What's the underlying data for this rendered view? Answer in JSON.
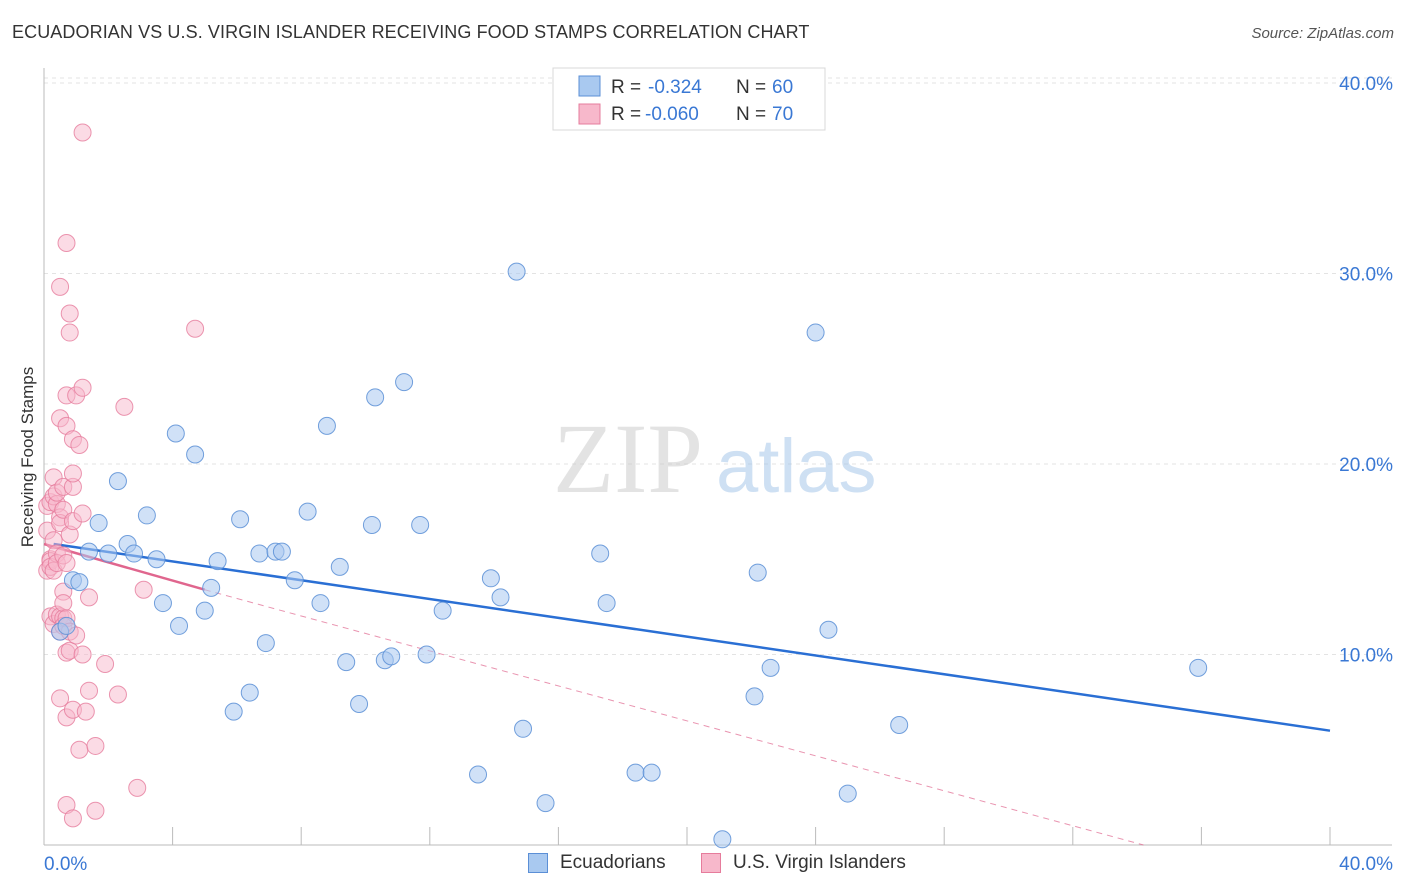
{
  "title": "ECUADORIAN VS U.S. VIRGIN ISLANDER RECEIVING FOOD STAMPS CORRELATION CHART",
  "source": "Source: ZipAtlas.com",
  "watermark": {
    "zip": "ZIP",
    "atlas": "atlas"
  },
  "colors": {
    "blue_fill": "#a9c9f0",
    "blue_stroke": "#5b8fd6",
    "blue_line": "#2a6fd4",
    "pink_fill": "#f7b8cb",
    "pink_stroke": "#e67c9c",
    "pink_line": "#e0668e",
    "axis_text": "#3a78d4",
    "grid": "#e3e3e3"
  },
  "legend_top": [
    {
      "r_label": "R =",
      "r_value": "-0.324",
      "n_label": "N =",
      "n_value": "60"
    },
    {
      "r_label": "R =",
      "r_value": "-0.060",
      "n_label": "N =",
      "n_value": "70"
    }
  ],
  "legend_bottom": [
    {
      "label": "Ecuadorians"
    },
    {
      "label": "U.S. Virgin Islanders"
    }
  ],
  "chart_data": {
    "type": "scatter",
    "title": "ECUADORIAN VS U.S. VIRGIN ISLANDER RECEIVING FOOD STAMPS CORRELATION CHART",
    "xlabel": "",
    "ylabel": "Receiving Food Stamps",
    "xlim": [
      0,
      40
    ],
    "ylim": [
      0,
      40.0
    ],
    "x_tick_labels": [
      "0.0%",
      "40.0%"
    ],
    "y_tick_labels": [
      "10.0%",
      "20.0%",
      "30.0%",
      "40.0%"
    ],
    "y_ticks": [
      10,
      20,
      30,
      40
    ],
    "legend_position": "top-center",
    "series": [
      {
        "name": "Ecuadorians",
        "r": -0.324,
        "n": 60,
        "trend": {
          "x": [
            0.3,
            40.0
          ],
          "y": [
            15.8,
            6.0
          ]
        },
        "points": [
          [
            0.5,
            11.2
          ],
          [
            0.7,
            11.5
          ],
          [
            0.9,
            13.9
          ],
          [
            1.1,
            13.8
          ],
          [
            1.4,
            15.4
          ],
          [
            1.7,
            16.9
          ],
          [
            2.0,
            15.3
          ],
          [
            2.3,
            19.1
          ],
          [
            2.6,
            15.8
          ],
          [
            2.8,
            15.3
          ],
          [
            3.2,
            17.3
          ],
          [
            3.5,
            15.0
          ],
          [
            3.7,
            12.7
          ],
          [
            4.1,
            21.6
          ],
          [
            4.2,
            11.5
          ],
          [
            4.7,
            20.5
          ],
          [
            5.0,
            12.3
          ],
          [
            5.2,
            13.5
          ],
          [
            5.4,
            14.9
          ],
          [
            5.9,
            7.0
          ],
          [
            6.1,
            17.1
          ],
          [
            6.4,
            8.0
          ],
          [
            6.7,
            15.3
          ],
          [
            6.9,
            10.6
          ],
          [
            7.2,
            15.4
          ],
          [
            7.4,
            15.4
          ],
          [
            7.8,
            13.9
          ],
          [
            8.2,
            17.5
          ],
          [
            8.6,
            12.7
          ],
          [
            8.8,
            22.0
          ],
          [
            9.2,
            14.6
          ],
          [
            9.4,
            9.6
          ],
          [
            9.8,
            7.4
          ],
          [
            10.2,
            16.8
          ],
          [
            10.3,
            23.5
          ],
          [
            10.6,
            9.7
          ],
          [
            10.8,
            9.9
          ],
          [
            11.2,
            24.3
          ],
          [
            11.7,
            16.8
          ],
          [
            11.9,
            10.0
          ],
          [
            12.4,
            12.3
          ],
          [
            13.5,
            3.7
          ],
          [
            13.9,
            14.0
          ],
          [
            14.2,
            13.0
          ],
          [
            14.7,
            30.1
          ],
          [
            14.9,
            6.1
          ],
          [
            15.6,
            2.2
          ],
          [
            17.3,
            15.3
          ],
          [
            17.5,
            12.7
          ],
          [
            18.4,
            3.8
          ],
          [
            18.9,
            3.8
          ],
          [
            21.1,
            0.3
          ],
          [
            22.1,
            7.8
          ],
          [
            22.2,
            14.3
          ],
          [
            22.6,
            9.3
          ],
          [
            24.0,
            26.9
          ],
          [
            24.4,
            11.3
          ],
          [
            25.0,
            2.7
          ],
          [
            26.6,
            6.3
          ],
          [
            35.9,
            9.3
          ]
        ]
      },
      {
        "name": "U.S. Virgin Islanders",
        "r": -0.06,
        "n": 70,
        "trend": {
          "x": [
            0.0,
            5.0
          ],
          "y": [
            15.8,
            13.4
          ]
        },
        "trend_dashed": {
          "x": [
            5.0,
            34.2
          ],
          "y": [
            13.4,
            0.0
          ]
        },
        "points": [
          [
            0.1,
            14.4
          ],
          [
            0.1,
            16.5
          ],
          [
            0.1,
            17.8
          ],
          [
            0.2,
            15.0
          ],
          [
            0.2,
            18.0
          ],
          [
            0.2,
            14.9
          ],
          [
            0.2,
            12.0
          ],
          [
            0.2,
            14.6
          ],
          [
            0.3,
            18.3
          ],
          [
            0.3,
            16.0
          ],
          [
            0.3,
            14.4
          ],
          [
            0.3,
            11.6
          ],
          [
            0.3,
            19.3
          ],
          [
            0.4,
            17.9
          ],
          [
            0.4,
            12.1
          ],
          [
            0.4,
            18.5
          ],
          [
            0.4,
            15.3
          ],
          [
            0.4,
            14.8
          ],
          [
            0.5,
            17.2
          ],
          [
            0.5,
            16.9
          ],
          [
            0.5,
            12.0
          ],
          [
            0.5,
            11.2
          ],
          [
            0.5,
            22.4
          ],
          [
            0.5,
            29.3
          ],
          [
            0.5,
            7.7
          ],
          [
            0.6,
            17.6
          ],
          [
            0.6,
            13.3
          ],
          [
            0.6,
            11.9
          ],
          [
            0.6,
            18.8
          ],
          [
            0.6,
            15.2
          ],
          [
            0.6,
            12.7
          ],
          [
            0.6,
            11.5
          ],
          [
            0.7,
            14.8
          ],
          [
            0.7,
            22.0
          ],
          [
            0.7,
            23.6
          ],
          [
            0.7,
            31.6
          ],
          [
            0.7,
            11.9
          ],
          [
            0.7,
            10.1
          ],
          [
            0.7,
            6.7
          ],
          [
            0.7,
            2.1
          ],
          [
            0.8,
            16.3
          ],
          [
            0.8,
            10.2
          ],
          [
            0.8,
            11.2
          ],
          [
            0.8,
            26.9
          ],
          [
            0.8,
            27.9
          ],
          [
            0.9,
            18.8
          ],
          [
            0.9,
            17.0
          ],
          [
            0.9,
            21.3
          ],
          [
            0.9,
            19.5
          ],
          [
            0.9,
            7.1
          ],
          [
            0.9,
            1.4
          ],
          [
            1.0,
            23.6
          ],
          [
            1.0,
            11.0
          ],
          [
            1.1,
            21.0
          ],
          [
            1.1,
            5.0
          ],
          [
            1.2,
            24.0
          ],
          [
            1.2,
            10.0
          ],
          [
            1.2,
            37.4
          ],
          [
            1.2,
            17.4
          ],
          [
            1.3,
            7.0
          ],
          [
            1.4,
            13.0
          ],
          [
            1.4,
            8.1
          ],
          [
            1.6,
            5.2
          ],
          [
            1.6,
            1.8
          ],
          [
            1.9,
            9.5
          ],
          [
            2.3,
            7.9
          ],
          [
            2.5,
            23.0
          ],
          [
            2.9,
            3.0
          ],
          [
            3.1,
            13.4
          ],
          [
            4.7,
            27.1
          ]
        ]
      }
    ]
  }
}
